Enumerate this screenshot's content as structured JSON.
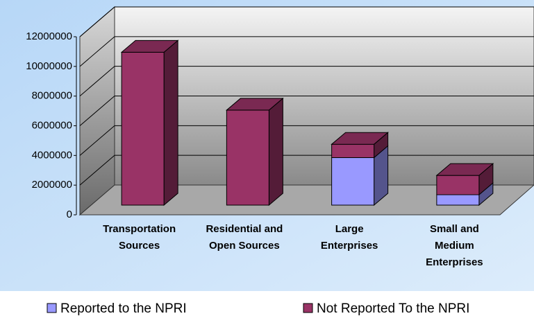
{
  "chart_data": {
    "type": "bar",
    "stacked": true,
    "categories": [
      [
        "Transportation",
        "Sources"
      ],
      [
        "Residential and",
        "Open Sources"
      ],
      [
        "Large",
        "Enterprises"
      ],
      [
        "Small and",
        "Medium",
        "Enterprises"
      ]
    ],
    "series": [
      {
        "name": "Reported to the NPRI",
        "color": "#9999ff",
        "values": [
          0,
          0,
          3200000,
          700000
        ]
      },
      {
        "name": "Not Reported To the NPRI",
        "color": "#993366",
        "values": [
          10300000,
          6400000,
          900000,
          1300000
        ]
      }
    ],
    "ylim": [
      0,
      12000000
    ],
    "yticks": [
      0,
      2000000,
      4000000,
      6000000,
      8000000,
      10000000,
      12000000
    ],
    "grid": true,
    "legend": "bottom"
  }
}
